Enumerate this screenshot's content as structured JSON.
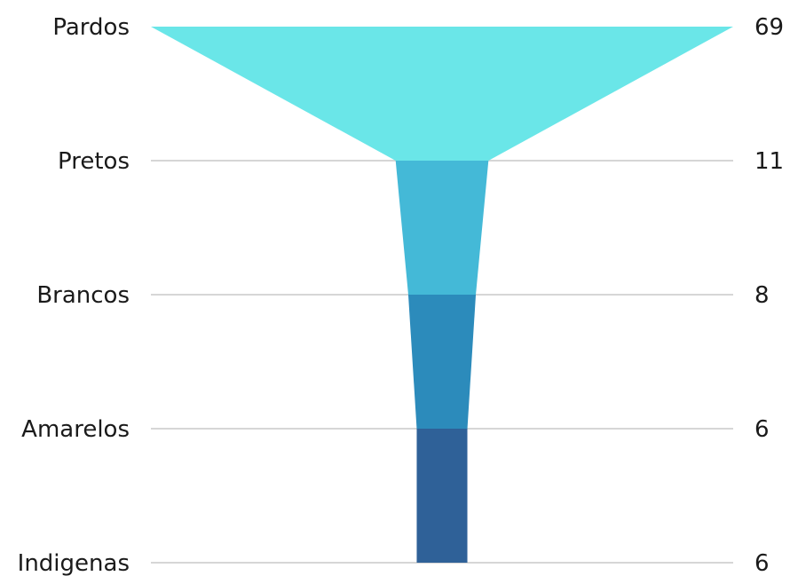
{
  "chart_data": {
    "type": "funnel",
    "title": "",
    "categories": [
      "Pardos",
      "Pretos",
      "Brancos",
      "Amarelos",
      "Indigenas"
    ],
    "values": [
      69,
      11,
      8,
      6,
      6
    ],
    "colors": [
      "#6ae6e8",
      "#44b9d7",
      "#2c8bbb",
      "#2f6198"
    ],
    "grid": true,
    "value_axis": "right",
    "category_axis": "left"
  }
}
